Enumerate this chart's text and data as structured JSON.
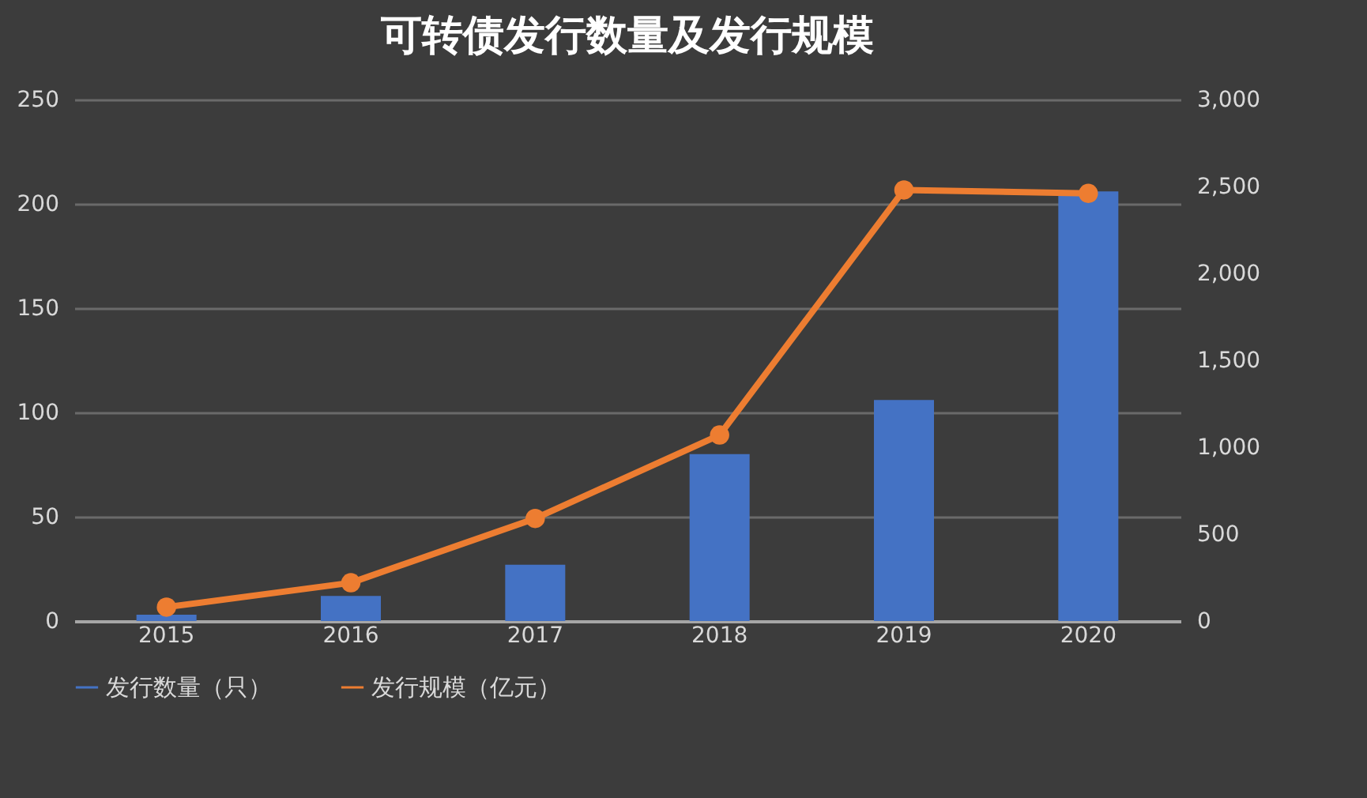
{
  "chart_data": {
    "type": "bar",
    "title": "可转债发行数量及发行规模",
    "categories": [
      "2015",
      "2016",
      "2017",
      "2018",
      "2019",
      "2020"
    ],
    "series": [
      {
        "name": "发行数量（只）",
        "color": "#4472c4",
        "values": [
          3,
          12,
          27,
          80,
          106,
          206
        ]
      },
      {
        "name": "发行规模（亿元）",
        "type": "line",
        "axis": "y2",
        "color": "#ed7d31",
        "values": [
          80,
          220,
          590,
          1070,
          2480,
          2460
        ]
      }
    ],
    "ylim": [
      0,
      250
    ],
    "yticks": [
      0,
      50,
      100,
      150,
      200,
      250
    ],
    "y2lim": [
      0,
      3000
    ],
    "y2ticks": [
      {
        "value": 0,
        "label": "0"
      },
      {
        "value": 500,
        "label": "500"
      },
      {
        "value": 1000,
        "label": "1,000"
      },
      {
        "value": 1500,
        "label": "1,500"
      },
      {
        "value": 2000,
        "label": "2,000"
      },
      {
        "value": 2500,
        "label": "2,500"
      },
      {
        "value": 3000,
        "label": "3,000"
      }
    ],
    "grid": "y",
    "legend": "bottom",
    "marker": "circle",
    "line_style": "solid"
  }
}
